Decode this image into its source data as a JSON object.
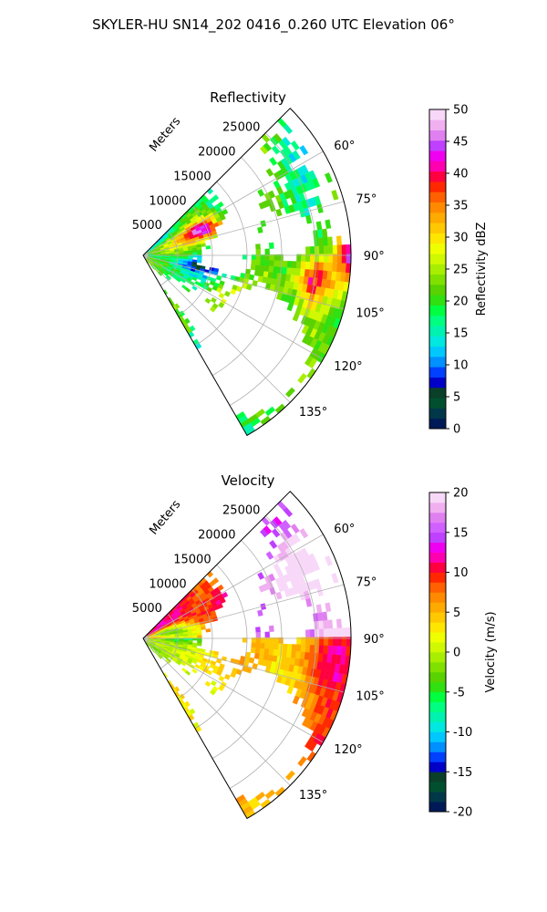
{
  "figure_title": "SKYLER-HU  SN14_202  0416_0.260 UTC Elevation 06°",
  "colors": {
    "reflectivity_scale": [
      "#001a57",
      "#00384a",
      "#005030",
      "#0a3f2a",
      "#0000c8",
      "#0040ff",
      "#0090ff",
      "#00c8ff",
      "#00e8e0",
      "#00f2b0",
      "#00ff80",
      "#00ff40",
      "#30e010",
      "#58d200",
      "#80e000",
      "#a8ee00",
      "#d0f800",
      "#f0ff00",
      "#ffe600",
      "#ffc800",
      "#ffaa00",
      "#ff8a00",
      "#ff6000",
      "#ff2800",
      "#ff0040",
      "#ff00b0",
      "#f000f0",
      "#c040ff",
      "#e080f0",
      "#f0b0f0",
      "#f8d8f8"
    ],
    "velocity_scale": [
      "#001a57",
      "#00384a",
      "#005030",
      "#0a3f2a",
      "#0000c8",
      "#0040ff",
      "#0090ff",
      "#00c8ff",
      "#00e8e0",
      "#00f2b0",
      "#00ff80",
      "#00ff40",
      "#30e010",
      "#58d200",
      "#80e000",
      "#a8ee00",
      "#d0f800",
      "#f0ff00",
      "#ffe600",
      "#ffc800",
      "#ffaa00",
      "#ff8a00",
      "#ff6000",
      "#ff2800",
      "#ff0040",
      "#ff00b0",
      "#f000f0",
      "#c040ff",
      "#d060ff",
      "#e080f0",
      "#f0b0f0",
      "#f8d8f8"
    ]
  },
  "chart_data": [
    {
      "type": "heatmap",
      "subtype": "polar-ppi",
      "title": "Reflectivity",
      "range_label": "Meters",
      "range_ticks": [
        5000,
        10000,
        15000,
        20000,
        25000
      ],
      "range_max": 30000,
      "azimuth_ticks": [
        "60°",
        "75°",
        "90°",
        "105°",
        "120°",
        "135°"
      ],
      "azimuth_range_deg": [
        45,
        150
      ],
      "grid": true,
      "colorbar": {
        "label": "Reflectivity dBZ",
        "min": 0,
        "max": 50,
        "ticks": [
          0,
          5,
          10,
          15,
          20,
          25,
          30,
          35,
          40,
          45,
          50
        ]
      }
    },
    {
      "type": "heatmap",
      "subtype": "polar-ppi",
      "title": "Velocity",
      "range_label": "Meters",
      "range_ticks": [
        5000,
        10000,
        15000,
        20000,
        25000
      ],
      "range_max": 30000,
      "azimuth_ticks": [
        "60°",
        "75°",
        "90°",
        "105°",
        "120°",
        "135°"
      ],
      "azimuth_range_deg": [
        45,
        150
      ],
      "grid": true,
      "colorbar": {
        "label": "Velocity (m/s)",
        "min": -20,
        "max": 20,
        "ticks": [
          -20,
          -15,
          -10,
          -5,
          0,
          5,
          10,
          15,
          20
        ]
      }
    }
  ]
}
